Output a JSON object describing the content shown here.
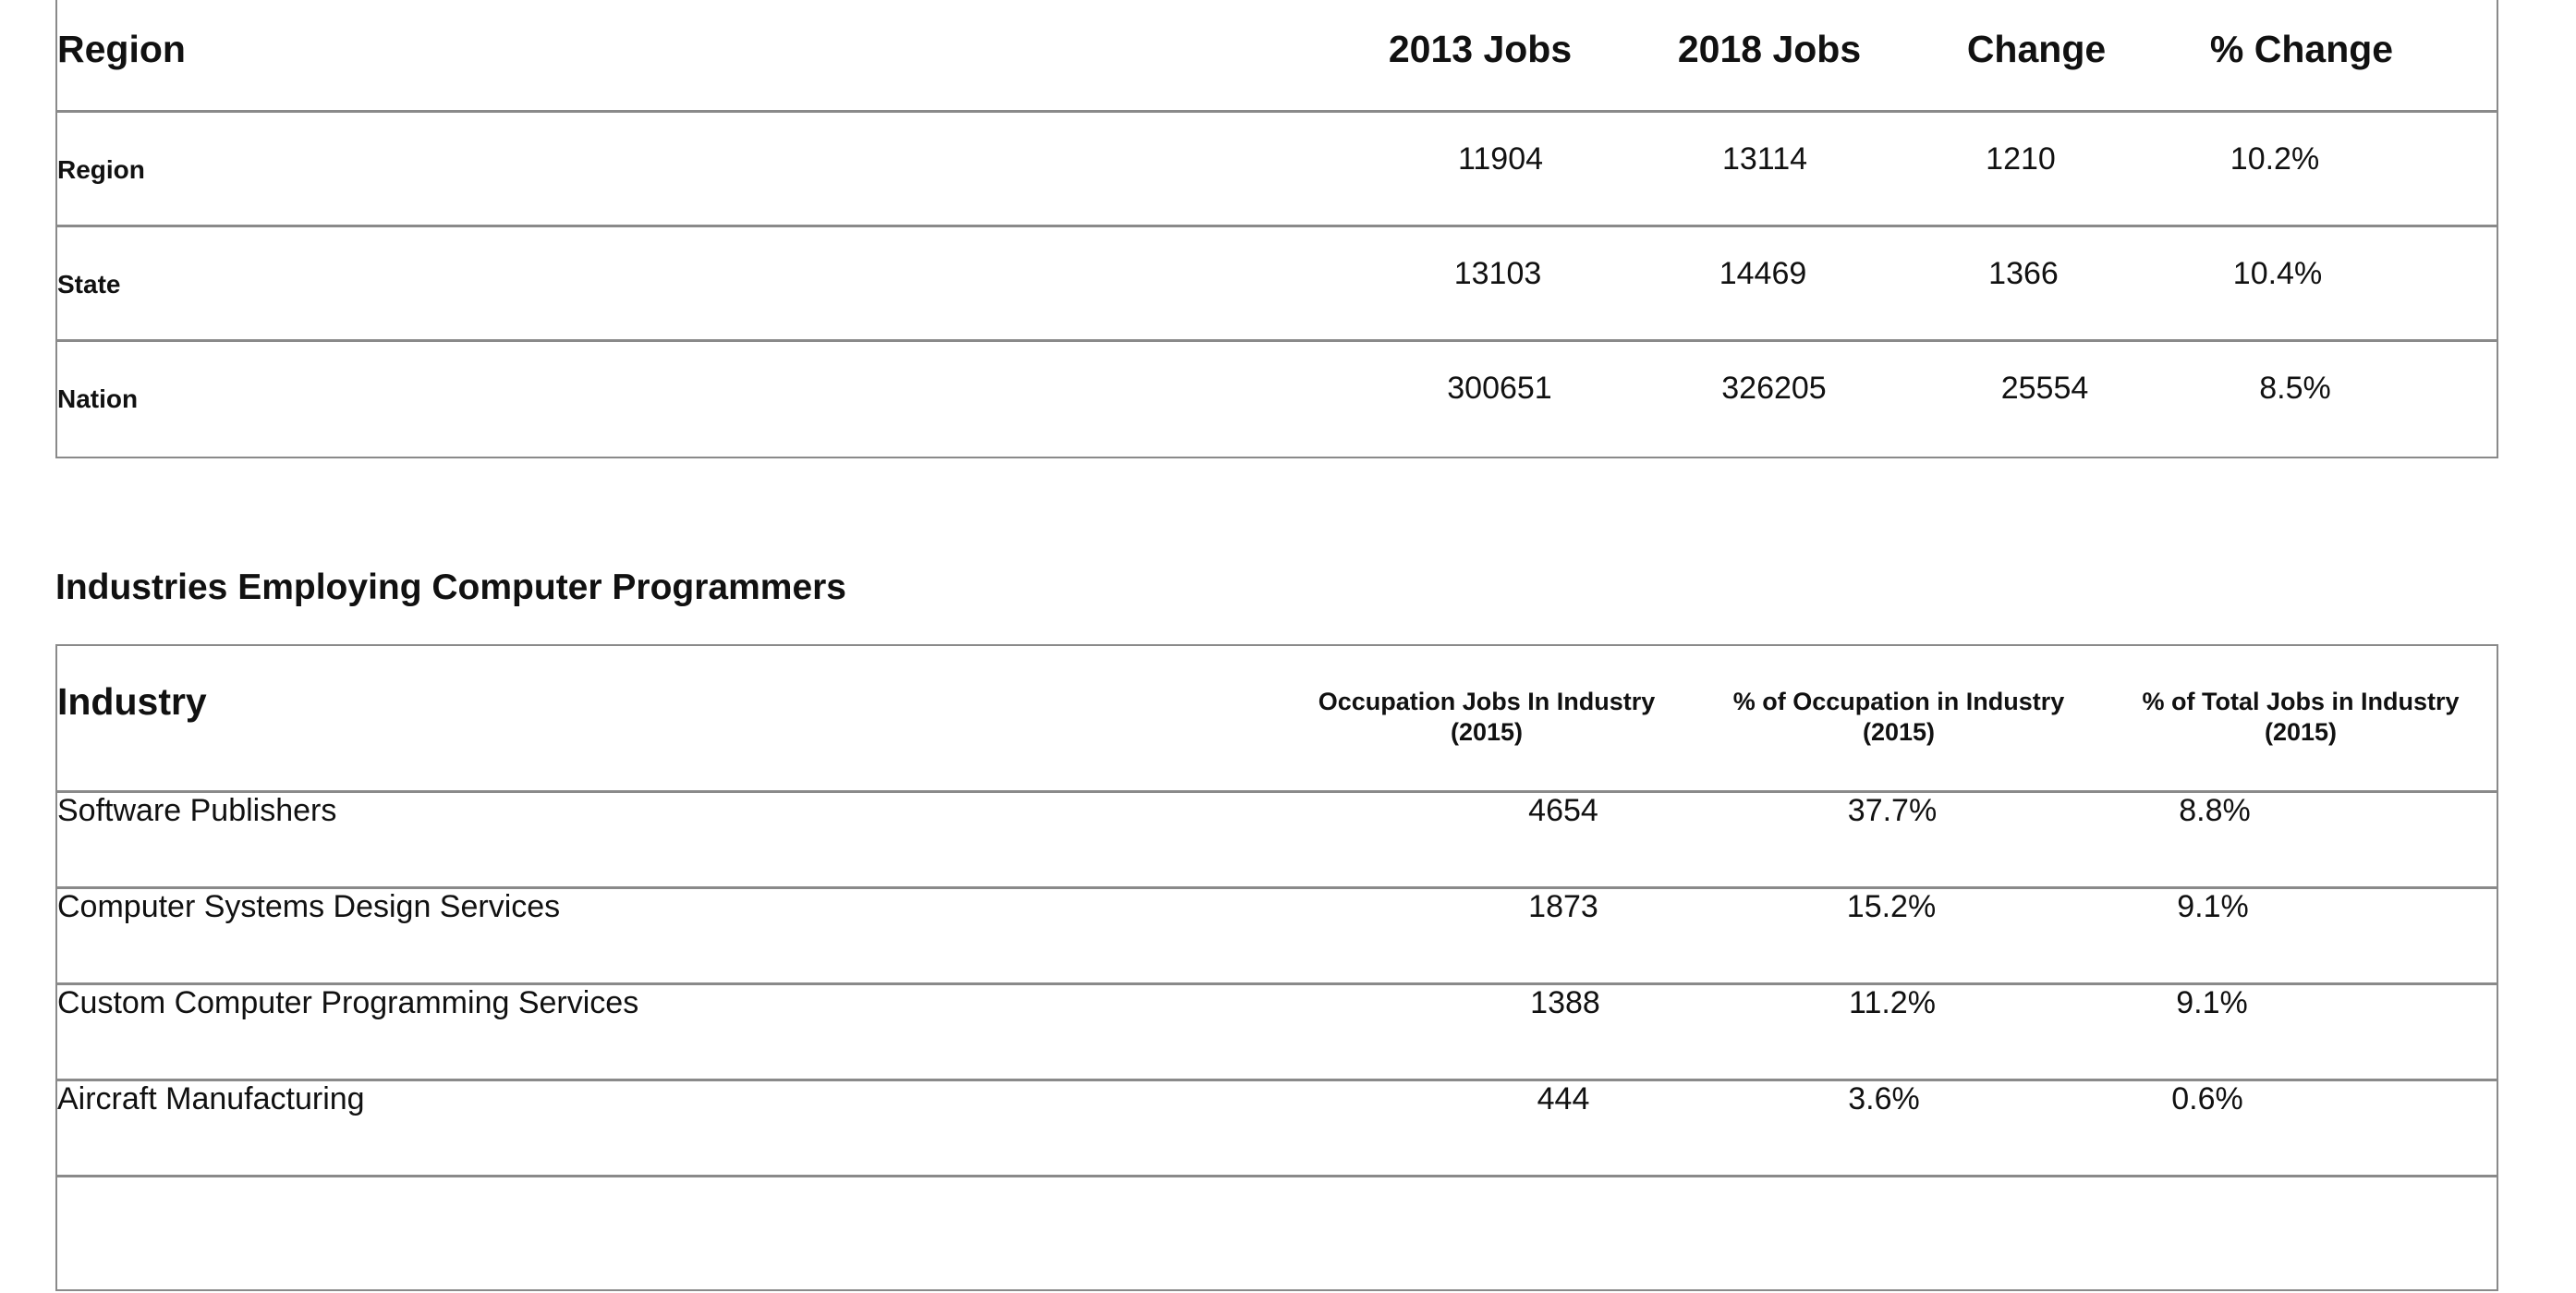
{
  "regional_table": {
    "headers": [
      "Region",
      "2013 Jobs",
      "2018 Jobs",
      "Change",
      "% Change"
    ],
    "rows": [
      {
        "label": "Region",
        "jobs_2013": "11904",
        "jobs_2018": "13114",
        "change": "1210",
        "pct_change": "10.2%"
      },
      {
        "label": "State",
        "jobs_2013": "13103",
        "jobs_2018": "14469",
        "change": "1366",
        "pct_change": "10.4%"
      },
      {
        "label": "Nation",
        "jobs_2013": "300651",
        "jobs_2018": "326205",
        "change": "25554",
        "pct_change": "8.5%"
      }
    ]
  },
  "industries_section": {
    "title": "Industries Employing Computer Programmers",
    "headers": {
      "industry": "Industry",
      "occupation_jobs_line1": "Occupation Jobs In Industry",
      "occupation_jobs_line2": "(2015)",
      "pct_occupation_line1": "% of Occupation in Industry",
      "pct_occupation_line2": "(2015)",
      "pct_total_line1": "% of Total Jobs in Industry",
      "pct_total_line2": "(2015)"
    },
    "rows": [
      {
        "industry": "Software Publishers",
        "occupation_jobs": "4654",
        "pct_occupation": "37.7%",
        "pct_total": "8.8%"
      },
      {
        "industry": "Computer Systems Design Services",
        "occupation_jobs": "1873",
        "pct_occupation": "15.2%",
        "pct_total": "9.1%"
      },
      {
        "industry": "Custom Computer Programming Services",
        "occupation_jobs": "1388",
        "pct_occupation": "11.2%",
        "pct_total": "9.1%"
      },
      {
        "industry": "Aircraft Manufacturing",
        "occupation_jobs": "444",
        "pct_occupation": "3.6%",
        "pct_total": "0.6%"
      }
    ]
  }
}
